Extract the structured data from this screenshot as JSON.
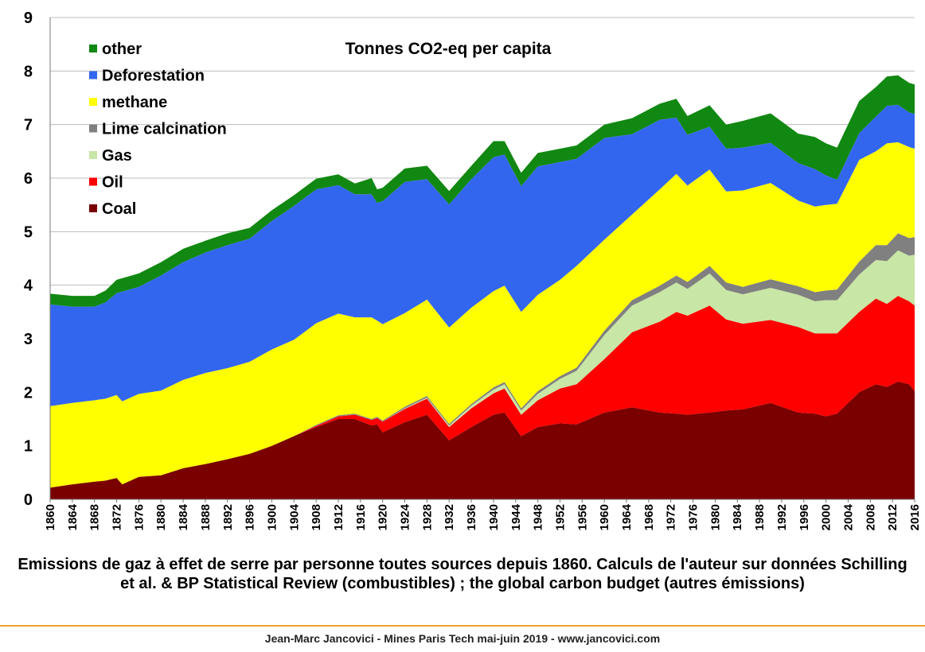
{
  "chart_data": {
    "type": "area",
    "title": "Tonnes CO2-eq per capita",
    "xlabel": "",
    "ylabel": "",
    "ylim": [
      0,
      9
    ],
    "yticks": [
      0,
      1,
      2,
      3,
      4,
      5,
      6,
      7,
      8,
      9
    ],
    "x": [
      1860,
      1864,
      1868,
      1870,
      1872,
      1873,
      1876,
      1880,
      1884,
      1888,
      1892,
      1896,
      1900,
      1904,
      1908,
      1912,
      1915,
      1918,
      1919,
      1920,
      1924,
      1928,
      1932,
      1936,
      1940,
      1942,
      1945,
      1948,
      1952,
      1955,
      1960,
      1965,
      1970,
      1973,
      1975,
      1979,
      1982,
      1985,
      1990,
      1995,
      1998,
      2000,
      2002,
      2006,
      2009,
      2011,
      2013,
      2015,
      2016
    ],
    "xticks": [
      1860,
      1864,
      1868,
      1872,
      1876,
      1880,
      1884,
      1888,
      1892,
      1896,
      1900,
      1904,
      1908,
      1912,
      1916,
      1920,
      1924,
      1928,
      1932,
      1936,
      1940,
      1944,
      1948,
      1952,
      1956,
      1960,
      1964,
      1968,
      1972,
      1976,
      1980,
      1984,
      1988,
      1992,
      1996,
      2000,
      2004,
      2008,
      2012,
      2016
    ],
    "legend_position": "top-left",
    "series": [
      {
        "name": "Coal",
        "color": "#7a0000",
        "values": [
          0.22,
          0.28,
          0.33,
          0.35,
          0.4,
          0.28,
          0.42,
          0.45,
          0.58,
          0.66,
          0.75,
          0.85,
          1.0,
          1.18,
          1.35,
          1.5,
          1.5,
          1.38,
          1.4,
          1.25,
          1.44,
          1.58,
          1.1,
          1.35,
          1.58,
          1.62,
          1.18,
          1.35,
          1.42,
          1.4,
          1.62,
          1.72,
          1.62,
          1.6,
          1.58,
          1.62,
          1.66,
          1.68,
          1.8,
          1.62,
          1.6,
          1.55,
          1.6,
          2.0,
          2.15,
          2.1,
          2.2,
          2.15,
          2.02
        ]
      },
      {
        "name": "Oil",
        "color": "#ff0000",
        "values": [
          0,
          0,
          0,
          0,
          0,
          0,
          0,
          0,
          0,
          0,
          0,
          0,
          0,
          0,
          0.02,
          0.05,
          0.08,
          0.1,
          0.12,
          0.2,
          0.25,
          0.3,
          0.25,
          0.35,
          0.4,
          0.45,
          0.4,
          0.5,
          0.65,
          0.75,
          1.0,
          1.4,
          1.7,
          1.9,
          1.85,
          2.0,
          1.7,
          1.6,
          1.55,
          1.6,
          1.5,
          1.55,
          1.5,
          1.5,
          1.6,
          1.55,
          1.6,
          1.55,
          1.6
        ]
      },
      {
        "name": "Gas",
        "color": "#c8e6a5",
        "values": [
          0,
          0,
          0,
          0,
          0,
          0,
          0,
          0,
          0,
          0,
          0,
          0,
          0,
          0,
          0,
          0,
          0,
          0,
          0,
          0,
          0.01,
          0.02,
          0.03,
          0.05,
          0.07,
          0.08,
          0.08,
          0.12,
          0.18,
          0.25,
          0.45,
          0.5,
          0.55,
          0.55,
          0.5,
          0.6,
          0.55,
          0.55,
          0.6,
          0.6,
          0.6,
          0.62,
          0.62,
          0.7,
          0.72,
          0.8,
          0.85,
          0.85,
          0.95
        ]
      },
      {
        "name": "Lime calcination",
        "color": "#808080",
        "values": [
          0,
          0,
          0,
          0,
          0,
          0,
          0,
          0,
          0,
          0,
          0,
          0,
          0,
          0,
          0.02,
          0.02,
          0.02,
          0.02,
          0.02,
          0.02,
          0.03,
          0.03,
          0.03,
          0.03,
          0.04,
          0.04,
          0.04,
          0.05,
          0.05,
          0.06,
          0.08,
          0.1,
          0.12,
          0.13,
          0.13,
          0.14,
          0.14,
          0.14,
          0.16,
          0.16,
          0.17,
          0.18,
          0.2,
          0.24,
          0.28,
          0.3,
          0.32,
          0.33,
          0.33
        ]
      },
      {
        "name": "methane",
        "color": "#ffff00",
        "values": [
          1.52,
          1.52,
          1.52,
          1.53,
          1.55,
          1.55,
          1.55,
          1.58,
          1.65,
          1.7,
          1.7,
          1.72,
          1.8,
          1.8,
          1.9,
          1.9,
          1.8,
          1.9,
          1.8,
          1.8,
          1.75,
          1.8,
          1.8,
          1.8,
          1.8,
          1.8,
          1.8,
          1.8,
          1.8,
          1.9,
          1.7,
          1.6,
          1.8,
          1.9,
          1.8,
          1.8,
          1.7,
          1.8,
          1.8,
          1.6,
          1.6,
          1.6,
          1.6,
          1.9,
          1.75,
          1.9,
          1.7,
          1.7,
          1.65
        ]
      },
      {
        "name": "Deforestation",
        "color": "#3366ee",
        "values": [
          1.9,
          1.8,
          1.75,
          1.8,
          1.9,
          2.05,
          2.0,
          2.15,
          2.2,
          2.25,
          2.3,
          2.3,
          2.4,
          2.5,
          2.5,
          2.4,
          2.3,
          2.3,
          2.2,
          2.3,
          2.45,
          2.25,
          2.3,
          2.4,
          2.5,
          2.45,
          2.35,
          2.4,
          2.2,
          2.0,
          1.9,
          1.5,
          1.3,
          1.05,
          0.95,
          0.8,
          0.8,
          0.8,
          0.75,
          0.7,
          0.7,
          0.55,
          0.45,
          0.5,
          0.65,
          0.7,
          0.7,
          0.65,
          0.65
        ]
      },
      {
        "name": "other",
        "color": "#118811",
        "values": [
          0.2,
          0.2,
          0.2,
          0.22,
          0.25,
          0.25,
          0.25,
          0.25,
          0.25,
          0.22,
          0.22,
          0.2,
          0.2,
          0.2,
          0.2,
          0.2,
          0.2,
          0.3,
          0.25,
          0.25,
          0.25,
          0.25,
          0.25,
          0.25,
          0.3,
          0.25,
          0.25,
          0.25,
          0.25,
          0.25,
          0.25,
          0.3,
          0.3,
          0.35,
          0.35,
          0.4,
          0.45,
          0.5,
          0.55,
          0.55,
          0.6,
          0.6,
          0.6,
          0.6,
          0.55,
          0.55,
          0.55,
          0.55,
          0.55
        ]
      }
    ]
  },
  "legend_order": [
    "other",
    "Deforestation",
    "methane",
    "Lime calcination",
    "Gas",
    "Oil",
    "Coal"
  ],
  "caption": "Emissions de gaz à effet de serre par personne toutes sources depuis 1860. Calculs de l'auteur sur données Schilling et al. & BP Statistical Review (combustibles) ; the global carbon budget (autres émissions)",
  "footer": "Jean-Marc Jancovici - Mines Paris Tech mai-juin 2019 - www.jancovici.com"
}
